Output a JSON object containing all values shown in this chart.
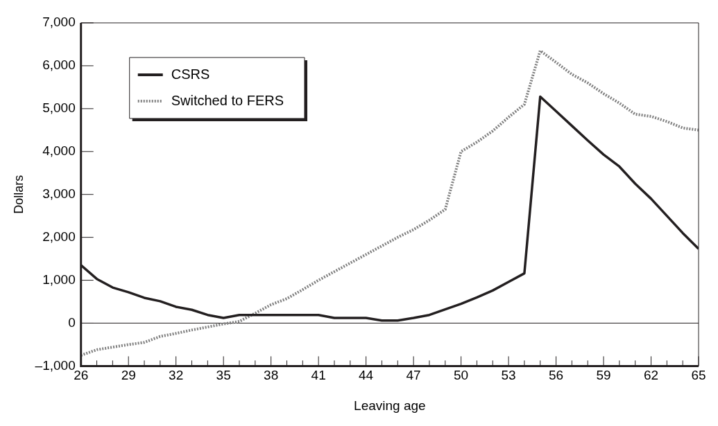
{
  "chart_data": {
    "type": "line",
    "xlabel": "Leaving age",
    "ylabel": "Dollars",
    "x": [
      26,
      27,
      28,
      29,
      30,
      31,
      32,
      33,
      34,
      35,
      36,
      37,
      38,
      39,
      40,
      41,
      42,
      43,
      44,
      45,
      46,
      47,
      48,
      49,
      50,
      51,
      52,
      53,
      54,
      55,
      56,
      57,
      58,
      59,
      60,
      61,
      62,
      63,
      64,
      65
    ],
    "series": [
      {
        "name": "CSRS",
        "color": "#231f20",
        "line_style": "solid",
        "values": [
          1350,
          1030,
          830,
          720,
          590,
          510,
          380,
          310,
          190,
          120,
          190,
          190,
          190,
          190,
          190,
          190,
          120,
          120,
          120,
          60,
          60,
          120,
          190,
          320,
          450,
          600,
          760,
          960,
          1160,
          5280,
          4940,
          4600,
          4260,
          3930,
          3650,
          3250,
          2900,
          2500,
          2100,
          1730
        ]
      },
      {
        "name": "Switched to FERS",
        "color": "#7f7f7f",
        "line_style": "dotted",
        "values": [
          -750,
          -620,
          -560,
          -500,
          -450,
          -310,
          -240,
          -160,
          -90,
          -20,
          40,
          230,
          430,
          570,
          780,
          1000,
          1200,
          1400,
          1600,
          1800,
          2000,
          2180,
          2400,
          2650,
          4000,
          4220,
          4480,
          4800,
          5100,
          6350,
          6080,
          5800,
          5600,
          5350,
          5130,
          4870,
          4820,
          4700,
          4550,
          4500
        ]
      }
    ],
    "xlim": [
      26,
      65
    ],
    "xticks": [
      26,
      {
        "value": 27,
        "label": null
      },
      {
        "value": 28,
        "label": null
      },
      29,
      {
        "value": 30,
        "label": null
      },
      {
        "value": 31,
        "label": null
      },
      32,
      {
        "value": 33,
        "label": null
      },
      {
        "value": 34,
        "label": null
      },
      35,
      {
        "value": 36,
        "label": null
      },
      {
        "value": 37,
        "label": null
      },
      38,
      {
        "value": 39,
        "label": null
      },
      {
        "value": 40,
        "label": null
      },
      41,
      {
        "value": 42,
        "label": null
      },
      {
        "value": 43,
        "label": null
      },
      44,
      {
        "value": 45,
        "label": null
      },
      {
        "value": 46,
        "label": null
      },
      47,
      {
        "value": 48,
        "label": null
      },
      {
        "value": 49,
        "label": null
      },
      50,
      {
        "value": 51,
        "label": null
      },
      {
        "value": 52,
        "label": null
      },
      53,
      {
        "value": 54,
        "label": null
      },
      {
        "value": 55,
        "label": null
      },
      56,
      {
        "value": 57,
        "label": null
      },
      {
        "value": 58,
        "label": null
      },
      59,
      {
        "value": 60,
        "label": null
      },
      {
        "value": 61,
        "label": null
      },
      62,
      {
        "value": 63,
        "label": null
      },
      {
        "value": 64,
        "label": null
      },
      65
    ],
    "ylim": [
      -1000,
      7000
    ],
    "yticks": [
      {
        "value": -1000,
        "label": "–1,000"
      },
      0,
      {
        "value": 1000,
        "label": "1,000"
      },
      {
        "value": 2000,
        "label": "2,000"
      },
      {
        "value": 3000,
        "label": "3,000"
      },
      {
        "value": 4000,
        "label": "4,000"
      },
      {
        "value": 5000,
        "label": "5,000"
      },
      {
        "value": 6000,
        "label": "6,000"
      },
      {
        "value": 7000,
        "label": "7,000"
      }
    ],
    "ref_lines": [
      {
        "axis": "y",
        "value": 0,
        "color": "#231f20"
      }
    ],
    "grid": false,
    "legend": "top left",
    "marker": "none"
  }
}
